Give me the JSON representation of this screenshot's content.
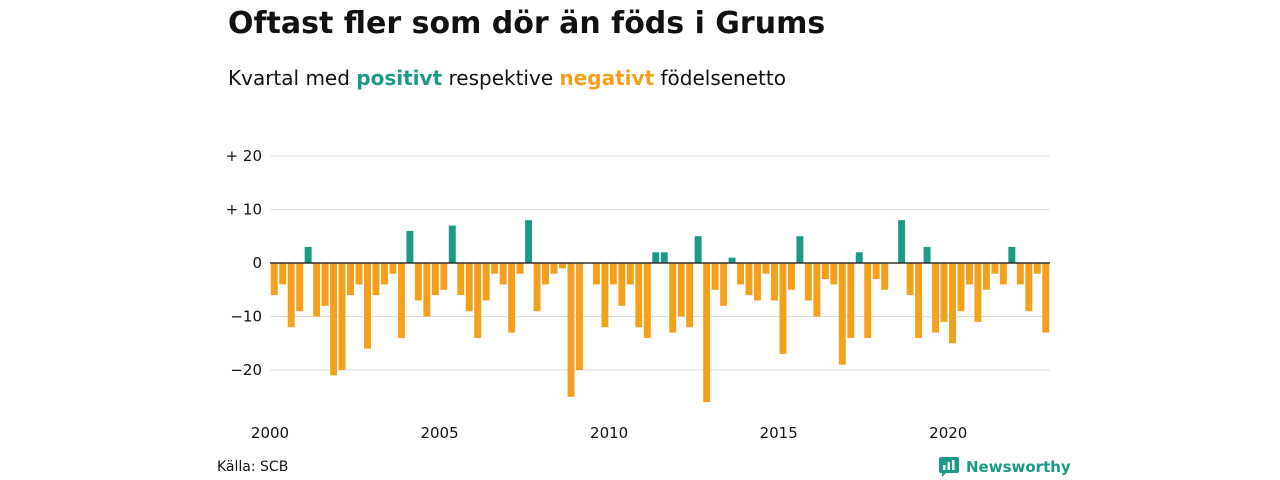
{
  "header": {
    "title": "Oftast fler som dör än föds i Grums",
    "subtitle_pre": "Kvartal med",
    "subtitle_pos": "positivt",
    "subtitle_mid": "respektive",
    "subtitle_neg": "negativt",
    "subtitle_post": "födelsenetto"
  },
  "footer": {
    "source": "Källa: SCB",
    "brand": "Newsworthy"
  },
  "colors": {
    "positive": "#1b9a87",
    "negative": "#f5a01c",
    "grid": "#dddddd",
    "zero_line": "#333333"
  },
  "chart_data": {
    "type": "bar",
    "x_start": 2000,
    "x_unit": "quarter",
    "ylim": [
      -26,
      20
    ],
    "yticks": [
      20,
      10,
      0,
      -10,
      -20
    ],
    "ytick_labels": [
      "+ 20",
      "+ 10",
      "0",
      "−10",
      "−20"
    ],
    "xticks": [
      "2000",
      "2005",
      "2010",
      "2015",
      "2020"
    ],
    "grid": true,
    "values": [
      -6,
      -4,
      -12,
      -9,
      3,
      -10,
      -8,
      -21,
      -20,
      -6,
      -4,
      -16,
      -6,
      -4,
      -2,
      -14,
      6,
      -7,
      -10,
      -6,
      -5,
      7,
      -6,
      -9,
      -14,
      -7,
      -2,
      -4,
      -13,
      -2,
      8,
      -9,
      -4,
      -2,
      -1,
      -25,
      -20,
      0,
      -4,
      -12,
      -4,
      -8,
      -4,
      -12,
      -14,
      2,
      2,
      -13,
      -10,
      -12,
      5,
      -26,
      -5,
      -8,
      1,
      -4,
      -6,
      -7,
      -2,
      -7,
      -17,
      -5,
      5,
      -7,
      -10,
      -3,
      -4,
      -19,
      -14,
      2,
      -14,
      -3,
      -5,
      0,
      8,
      -6,
      -14,
      3,
      -13,
      -11,
      -15,
      -9,
      -4,
      -11,
      -5,
      -2,
      -4,
      3,
      -4,
      -9,
      -2,
      -13
    ]
  }
}
